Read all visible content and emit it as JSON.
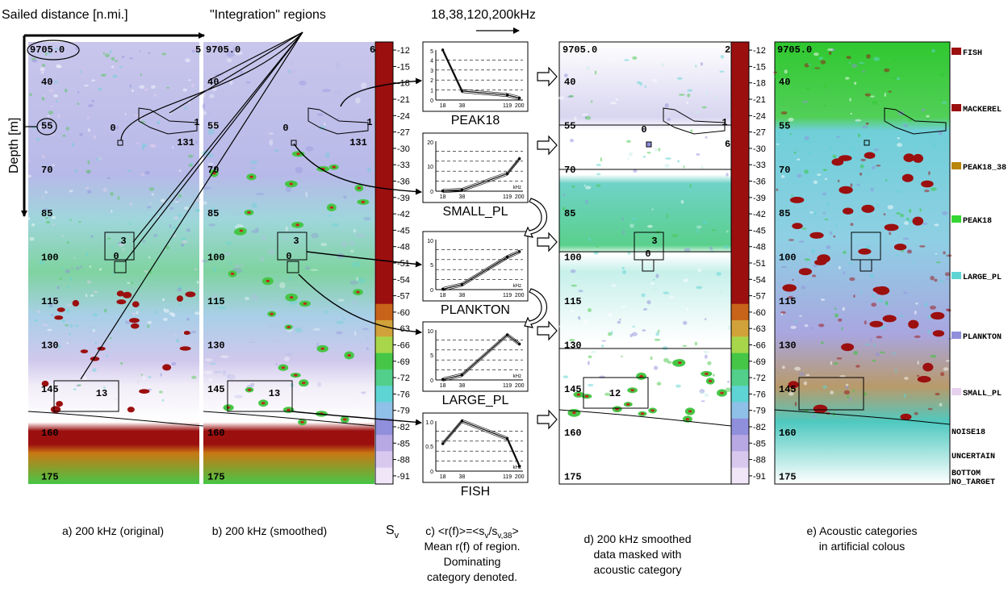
{
  "header": {
    "sailed_distance": "Sailed distance [n.mi.]",
    "integration_regions": "\"Integration\" regions",
    "frequencies": "18,38,120,200kHz",
    "depth_axis": "Depth [m]"
  },
  "echograms": {
    "distance_label": "9705.0",
    "depth_ticks": [
      "40",
      "55",
      "70",
      "85",
      "100",
      "115",
      "130",
      "145",
      "160",
      "175"
    ],
    "panel_a_edge": "5",
    "panel_b_edge": "6",
    "panel_d_edge": "2",
    "panel_d_edge2": "6",
    "region_labels_ab": [
      "0",
      "1",
      "131",
      "3",
      "0",
      "13"
    ],
    "region_labels_d": [
      "0",
      "1",
      "3",
      "0",
      "12"
    ]
  },
  "colorbar": {
    "ticks": [
      "-12",
      "-15",
      "-18",
      "-21",
      "-24",
      "-27",
      "-30",
      "-33",
      "-36",
      "-39",
      "-42",
      "-45",
      "-48",
      "-51",
      "-54",
      "-57",
      "-60",
      "-63",
      "-66",
      "-69",
      "-72",
      "-76",
      "-79",
      "-82",
      "-85",
      "-88",
      "-91"
    ],
    "label": "S",
    "label_sub": "v"
  },
  "response_charts": [
    {
      "label": "PEAK18",
      "ymax": "5",
      "ymid": [
        "4",
        "3",
        "2",
        "1"
      ],
      "xt": [
        "18",
        "38",
        "119",
        "200"
      ],
      "unit": "",
      "values": [
        5.0,
        0.9,
        0.5,
        0.2
      ]
    },
    {
      "label": "SMALL_PL",
      "ymax": "20",
      "ymid": [
        "10"
      ],
      "xt": [
        "18",
        "38",
        "119",
        "200"
      ],
      "unit": "kHz",
      "values": [
        0.1,
        0.5,
        7,
        13
      ]
    },
    {
      "label": "PLANKTON",
      "ymax": "10",
      "ymid": [
        "5"
      ],
      "xt": [
        "18",
        "38",
        "119",
        "200"
      ],
      "unit": "kHz",
      "values": [
        0.1,
        1,
        6.5,
        7.6
      ]
    },
    {
      "label": "LARGE_PL",
      "ymax": "10",
      "ymid": [
        "5"
      ],
      "xt": [
        "18",
        "38",
        "119",
        "200"
      ],
      "unit": "kHz",
      "values": [
        0.1,
        1,
        9,
        7.2
      ]
    },
    {
      "label": "FISH",
      "ymax": "1.0",
      "ymid": [
        "0.5"
      ],
      "xt": [
        "18",
        "38",
        "119",
        "200"
      ],
      "unit": "kHz",
      "values": [
        0.55,
        1.0,
        0.65,
        0.1
      ]
    }
  ],
  "legend": {
    "items": [
      {
        "label": "FISH",
        "color": "#9b0f0f"
      },
      {
        "label": "MACKEREL",
        "color": "#9b0f0f"
      },
      {
        "label": "PEAK18_38",
        "color": "#b8860b"
      },
      {
        "label": "PEAK18",
        "color": "#33d633"
      },
      {
        "label": "LARGE_PL",
        "color": "#5fd4d4"
      },
      {
        "label": "PLANKTON",
        "color": "#8f8fdc"
      },
      {
        "label": "SMALL_PL",
        "color": "#e6d1ee"
      },
      {
        "label": "NOISE18",
        "color": ""
      },
      {
        "label": "UNCERTAIN",
        "color": ""
      },
      {
        "label": "BOTTOM",
        "color": ""
      },
      {
        "label": "NO_TARGET",
        "color": ""
      }
    ]
  },
  "captions": {
    "a": "a) 200 kHz (original)",
    "b": "b) 200 kHz (smoothed)",
    "c1": "c) <r(f)>=<s",
    "c1_sub": "v",
    "c1_mid": "/s",
    "c1_sub2": "v,38",
    "c1_end": ">",
    "c2": "Mean r(f) of region.",
    "c3": "Dominating",
    "c4": "category denoted.",
    "d1": "d) 200 kHz smoothed",
    "d2": "data masked with",
    "d3": "acoustic category",
    "e1": "e) Acoustic categories",
    "e2": "in artificial colous"
  }
}
